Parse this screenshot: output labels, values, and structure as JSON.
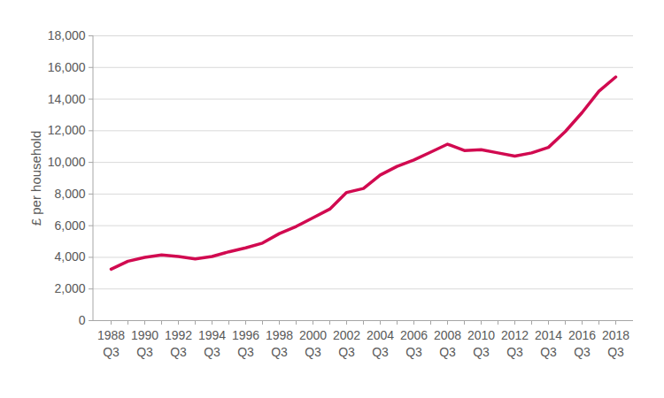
{
  "chart_data": {
    "type": "line",
    "y_label": "£ per household",
    "categories": [
      "1988 Q3",
      null,
      "1990 Q3",
      null,
      "1992 Q3",
      null,
      "1994 Q3",
      null,
      "1996 Q3",
      null,
      "1998 Q3",
      null,
      "2000 Q3",
      null,
      "2002 Q3",
      null,
      "2004 Q3",
      null,
      "2006 Q3",
      null,
      "2008 Q3",
      null,
      "2010 Q3",
      null,
      "2012 Q3",
      null,
      "2014 Q3",
      null,
      "2016 Q3",
      null,
      "2018 Q3"
    ],
    "values": [
      3250,
      3750,
      4000,
      4150,
      4050,
      3900,
      4050,
      4350,
      4600,
      4900,
      5500,
      5950,
      6500,
      7050,
      8100,
      8350,
      9200,
      9750,
      10150,
      10650,
      11150,
      10750,
      10800,
      10600,
      10400,
      10600,
      10950,
      11950,
      13150,
      14500,
      15400
    ],
    "color": "#d10a50",
    "ylim": [
      0,
      18000
    ],
    "yticks": [
      0,
      {
        "value": 2000,
        "label": "2,000"
      },
      {
        "value": 4000,
        "label": "4,000"
      },
      {
        "value": 6000,
        "label": "6,000"
      },
      {
        "value": 8000,
        "label": "8,000"
      },
      {
        "value": 10000,
        "label": "10,000"
      },
      {
        "value": 12000,
        "label": "12,000"
      },
      {
        "value": 14000,
        "label": "14,000"
      },
      {
        "value": 16000,
        "label": "16,000"
      },
      {
        "value": 18000,
        "label": "18,000"
      }
    ],
    "grid": true
  }
}
